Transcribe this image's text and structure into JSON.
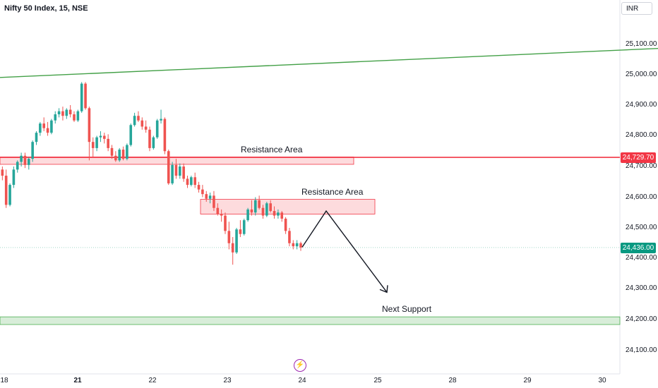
{
  "title": "Nifty 50 Index, 15, NSE",
  "currency": "INR",
  "colors": {
    "up": "#26a69a",
    "down": "#ef5350",
    "resistance": "#f23645",
    "support": "#4caf50",
    "trend": "#43a047"
  },
  "chart_data": {
    "type": "candlestick",
    "instrument": "Nifty 50 Index",
    "interval": "15",
    "exchange": "NSE",
    "y_axis": {
      "ticks": [
        "25,100.00",
        "25,000.00",
        "24,900.00",
        "24,800.00",
        "24,700.00",
        "24,600.00",
        "24,500.00",
        "24,400.00",
        "24,300.00",
        "24,200.00",
        "24,100.00"
      ],
      "range": [
        24060,
        25150
      ]
    },
    "x_axis": {
      "ticks": [
        "18",
        "21",
        "22",
        "23",
        "24",
        "25",
        "28",
        "29",
        "30"
      ]
    },
    "price_labels": {
      "resistance_level": "24,729.70",
      "last_price": "24,436.00"
    },
    "resistance_line": 24729.7,
    "last_price": 24436,
    "resistance_zones": [
      {
        "label": "Resistance Area",
        "from_day": "18",
        "to_day": "24",
        "low": 24707,
        "high": 24731
      },
      {
        "label": "Resistance Area",
        "from_day": "22",
        "to_day": "25",
        "low": 24545,
        "high": 24593
      }
    ],
    "support_zone": {
      "label": "Next Support",
      "low": 24185,
      "high": 24210
    },
    "trendline": [
      [
        -0.5,
        24985
      ],
      [
        12.3,
        25123
      ]
    ],
    "projection": [
      [
        24420,
        24437
      ],
      [
        24470,
        24555
      ],
      [
        24550,
        24290
      ]
    ],
    "candles": [
      [
        24690,
        24700,
        24655,
        24670
      ],
      [
        24670,
        24690,
        24565,
        24575
      ],
      [
        24575,
        24645,
        24570,
        24640
      ],
      [
        24640,
        24700,
        24630,
        24690
      ],
      [
        24690,
        24720,
        24680,
        24715
      ],
      [
        24715,
        24745,
        24700,
        24735
      ],
      [
        24735,
        24745,
        24695,
        24705
      ],
      [
        24705,
        24730,
        24690,
        24725
      ],
      [
        24725,
        24785,
        24715,
        24780
      ],
      [
        24780,
        24815,
        24770,
        24810
      ],
      [
        24810,
        24845,
        24800,
        24840
      ],
      [
        24840,
        24860,
        24815,
        24825
      ],
      [
        24825,
        24845,
        24800,
        24810
      ],
      [
        24810,
        24855,
        24805,
        24850
      ],
      [
        24850,
        24880,
        24840,
        24870
      ],
      [
        24870,
        24890,
        24860,
        24880
      ],
      [
        24880,
        24895,
        24850,
        24865
      ],
      [
        24865,
        24890,
        24855,
        24885
      ],
      [
        24885,
        24900,
        24860,
        24870
      ],
      [
        24870,
        24880,
        24845,
        24850
      ],
      [
        24850,
        24885,
        24845,
        24880
      ],
      [
        24880,
        24975,
        24875,
        24970
      ],
      [
        24970,
        24975,
        24885,
        24890
      ],
      [
        24890,
        24895,
        24720,
        24780
      ],
      [
        24780,
        24795,
        24730,
        24760
      ],
      [
        24760,
        24800,
        24750,
        24795
      ],
      [
        24795,
        24815,
        24780,
        24800
      ],
      [
        24800,
        24810,
        24775,
        24790
      ],
      [
        24790,
        24805,
        24750,
        24760
      ],
      [
        24760,
        24770,
        24725,
        24735
      ],
      [
        24735,
        24750,
        24715,
        24720
      ],
      [
        24720,
        24760,
        24715,
        24755
      ],
      [
        24755,
        24765,
        24720,
        24725
      ],
      [
        24725,
        24775,
        24720,
        24770
      ],
      [
        24770,
        24840,
        24765,
        24835
      ],
      [
        24835,
        24875,
        24830,
        24865
      ],
      [
        24865,
        24880,
        24845,
        24850
      ],
      [
        24850,
        24860,
        24820,
        24830
      ],
      [
        24830,
        24850,
        24810,
        24820
      ],
      [
        24820,
        24830,
        24750,
        24760
      ],
      [
        24760,
        24800,
        24755,
        24795
      ],
      [
        24795,
        24855,
        24790,
        24850
      ],
      [
        24850,
        24885,
        24840,
        24855
      ],
      [
        24855,
        24860,
        24740,
        24750
      ],
      [
        24750,
        24755,
        24640,
        24645
      ],
      [
        24645,
        24715,
        24640,
        24705
      ],
      [
        24705,
        24725,
        24660,
        24670
      ],
      [
        24670,
        24710,
        24660,
        24700
      ],
      [
        24700,
        24710,
        24650,
        24660
      ],
      [
        24660,
        24670,
        24630,
        24640
      ],
      [
        24640,
        24670,
        24635,
        24665
      ],
      [
        24665,
        24680,
        24630,
        24640
      ],
      [
        24640,
        24650,
        24615,
        24625
      ],
      [
        24625,
        24640,
        24600,
        24610
      ],
      [
        24610,
        24620,
        24585,
        24595
      ],
      [
        24595,
        24615,
        24580,
        24605
      ],
      [
        24605,
        24620,
        24555,
        24565
      ],
      [
        24565,
        24580,
        24540,
        24545
      ],
      [
        24545,
        24560,
        24520,
        24540
      ],
      [
        24540,
        24550,
        24480,
        24490
      ],
      [
        24490,
        24520,
        24430,
        24450
      ],
      [
        24450,
        24470,
        24380,
        24420
      ],
      [
        24420,
        24500,
        24415,
        24495
      ],
      [
        24495,
        24525,
        24470,
        24480
      ],
      [
        24480,
        24530,
        24475,
        24525
      ],
      [
        24525,
        24565,
        24520,
        24560
      ],
      [
        24560,
        24590,
        24540,
        24550
      ],
      [
        24550,
        24600,
        24540,
        24590
      ],
      [
        24590,
        24605,
        24560,
        24565
      ],
      [
        24565,
        24575,
        24530,
        24540
      ],
      [
        24540,
        24585,
        24535,
        24580
      ],
      [
        24580,
        24590,
        24550,
        24555
      ],
      [
        24555,
        24570,
        24530,
        24540
      ],
      [
        24540,
        24560,
        24530,
        24550
      ],
      [
        24550,
        24555,
        24520,
        24530
      ],
      [
        24530,
        24535,
        24480,
        24490
      ],
      [
        24490,
        24500,
        24440,
        24450
      ],
      [
        24450,
        24460,
        24430,
        24440
      ],
      [
        24440,
        24460,
        24430,
        24450
      ],
      [
        24450,
        24455,
        24425,
        24436
      ]
    ]
  },
  "annotations": {
    "resistance1_label": "Resistance Area",
    "resistance2_label": "Resistance Area",
    "support_label": "Next Support"
  },
  "icons": {
    "event": "lightning-icon"
  }
}
